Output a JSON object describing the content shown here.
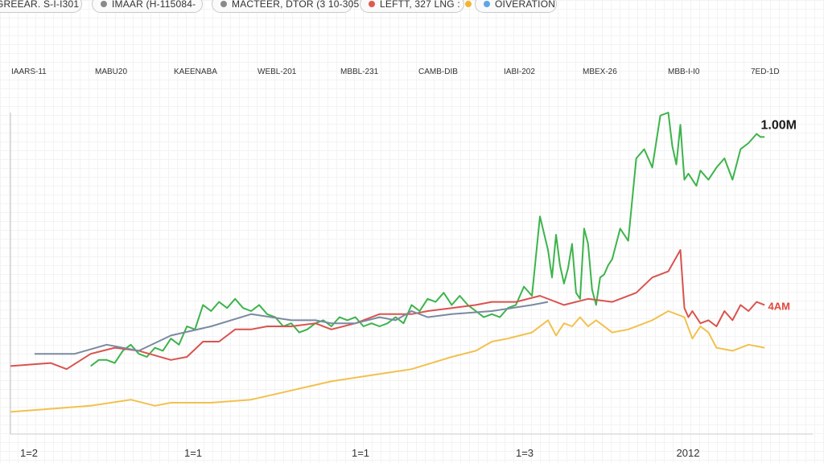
{
  "legend": [
    {
      "label": "GREEAR. S-I-I301",
      "color": "",
      "dot_position": "none"
    },
    {
      "label": "IMAAR (H-115084-",
      "color": "#8a8a8a",
      "dot_position": "before"
    },
    {
      "label": "MACTEER, DTOR (3 10-305",
      "color": "#8a8a8a",
      "dot_position": "before"
    },
    {
      "label": "LEFTT, 327 LNG :",
      "color": "#e05a4f",
      "dot_position": "before",
      "after_color": "#f2b531"
    },
    {
      "label": "OIVERATION",
      "color": "#5aa6e8",
      "dot_position": "before"
    }
  ],
  "column_headers": [
    "IAARS-11",
    "MABU20",
    "KAEENABA",
    "WEBL-201",
    "MBBL-231",
    "CAMB-DIB",
    "IABI-202",
    "MBEX-26",
    "MBB-I-I0",
    "7ED-1D"
  ],
  "chart_data": {
    "type": "line",
    "x_tick_labels": [
      "1=2",
      "1=1",
      "1=1",
      "1=3",
      "2012"
    ],
    "ylim": [
      0,
      1
    ],
    "grid": true,
    "end_labels": [
      {
        "series": "green",
        "text": "1.00M",
        "color": "#1a1a1a"
      },
      {
        "series": "red",
        "text": "4AM",
        "color": "#e0483c"
      }
    ],
    "series": [
      {
        "color": "#3cb44b",
        "x": [
          0.1,
          0.11,
          0.12,
          0.13,
          0.14,
          0.15,
          0.16,
          0.17,
          0.18,
          0.19,
          0.2,
          0.21,
          0.22,
          0.23,
          0.24,
          0.25,
          0.26,
          0.27,
          0.28,
          0.29,
          0.3,
          0.31,
          0.32,
          0.33,
          0.34,
          0.35,
          0.36,
          0.37,
          0.38,
          0.39,
          0.4,
          0.41,
          0.42,
          0.43,
          0.44,
          0.45,
          0.46,
          0.47,
          0.48,
          0.49,
          0.5,
          0.51,
          0.52,
          0.53,
          0.54,
          0.55,
          0.56,
          0.57,
          0.58,
          0.59,
          0.6,
          0.61,
          0.62,
          0.63,
          0.64,
          0.65,
          0.66,
          0.67,
          0.675,
          0.68,
          0.685,
          0.69,
          0.695,
          0.7,
          0.705,
          0.71,
          0.715,
          0.72,
          0.725,
          0.73,
          0.735,
          0.74,
          0.745,
          0.75,
          0.76,
          0.77,
          0.78,
          0.79,
          0.8,
          0.81,
          0.82,
          0.825,
          0.83,
          0.835,
          0.84,
          0.845,
          0.85,
          0.855,
          0.86,
          0.87,
          0.88,
          0.89,
          0.9,
          0.91,
          0.92,
          0.93,
          0.935,
          0.94
        ],
        "y": [
          0.17,
          0.19,
          0.19,
          0.18,
          0.22,
          0.24,
          0.21,
          0.2,
          0.23,
          0.22,
          0.26,
          0.24,
          0.3,
          0.29,
          0.37,
          0.35,
          0.38,
          0.36,
          0.39,
          0.36,
          0.35,
          0.37,
          0.34,
          0.33,
          0.3,
          0.31,
          0.28,
          0.29,
          0.31,
          0.32,
          0.3,
          0.33,
          0.32,
          0.33,
          0.3,
          0.31,
          0.3,
          0.31,
          0.33,
          0.31,
          0.37,
          0.35,
          0.39,
          0.38,
          0.41,
          0.37,
          0.4,
          0.37,
          0.35,
          0.33,
          0.34,
          0.33,
          0.36,
          0.37,
          0.43,
          0.4,
          0.66,
          0.55,
          0.46,
          0.6,
          0.5,
          0.44,
          0.49,
          0.57,
          0.41,
          0.39,
          0.62,
          0.57,
          0.42,
          0.37,
          0.46,
          0.47,
          0.5,
          0.52,
          0.62,
          0.58,
          0.85,
          0.88,
          0.82,
          0.99,
          1.0,
          0.89,
          0.83,
          0.96,
          0.78,
          0.8,
          0.78,
          0.76,
          0.81,
          0.78,
          0.82,
          0.85,
          0.78,
          0.88,
          0.9,
          0.93,
          0.92,
          0.92
        ],
        "comment": ""
      },
      {
        "color": "#d9534f",
        "x": [
          0.0,
          0.05,
          0.07,
          0.1,
          0.13,
          0.16,
          0.2,
          0.22,
          0.24,
          0.26,
          0.28,
          0.3,
          0.32,
          0.35,
          0.38,
          0.4,
          0.43,
          0.46,
          0.5,
          0.52,
          0.55,
          0.58,
          0.6,
          0.63,
          0.66,
          0.69,
          0.72,
          0.75,
          0.78,
          0.8,
          0.82,
          0.835,
          0.84,
          0.845,
          0.85,
          0.86,
          0.87,
          0.88,
          0.89,
          0.9,
          0.91,
          0.92,
          0.93,
          0.94
        ],
        "y": [
          0.17,
          0.18,
          0.16,
          0.21,
          0.23,
          0.22,
          0.19,
          0.2,
          0.25,
          0.25,
          0.29,
          0.29,
          0.3,
          0.3,
          0.31,
          0.29,
          0.31,
          0.34,
          0.34,
          0.35,
          0.36,
          0.37,
          0.38,
          0.38,
          0.4,
          0.37,
          0.39,
          0.38,
          0.41,
          0.46,
          0.48,
          0.55,
          0.36,
          0.33,
          0.35,
          0.31,
          0.32,
          0.3,
          0.35,
          0.32,
          0.37,
          0.35,
          0.38,
          0.37
        ]
      },
      {
        "color": "#7a8aa0",
        "x": [
          0.03,
          0.08,
          0.12,
          0.16,
          0.2,
          0.25,
          0.3,
          0.35,
          0.38,
          0.4,
          0.43,
          0.46,
          0.48,
          0.5,
          0.52,
          0.55,
          0.6,
          0.65,
          0.67
        ],
        "y": [
          0.21,
          0.21,
          0.24,
          0.22,
          0.27,
          0.3,
          0.34,
          0.32,
          0.32,
          0.31,
          0.31,
          0.33,
          0.32,
          0.35,
          0.33,
          0.34,
          0.35,
          0.37,
          0.38
        ]
      },
      {
        "color": "#f2c14e",
        "x": [
          0.0,
          0.05,
          0.1,
          0.15,
          0.18,
          0.2,
          0.25,
          0.3,
          0.35,
          0.4,
          0.45,
          0.5,
          0.55,
          0.58,
          0.6,
          0.62,
          0.65,
          0.67,
          0.68,
          0.69,
          0.7,
          0.71,
          0.72,
          0.73,
          0.75,
          0.77,
          0.8,
          0.82,
          0.84,
          0.85,
          0.86,
          0.87,
          0.88,
          0.9,
          0.92,
          0.94
        ],
        "y": [
          0.02,
          0.03,
          0.04,
          0.06,
          0.04,
          0.05,
          0.05,
          0.06,
          0.09,
          0.12,
          0.14,
          0.16,
          0.2,
          0.22,
          0.25,
          0.26,
          0.28,
          0.32,
          0.27,
          0.31,
          0.3,
          0.33,
          0.3,
          0.32,
          0.28,
          0.29,
          0.32,
          0.35,
          0.33,
          0.26,
          0.3,
          0.28,
          0.23,
          0.22,
          0.24,
          0.23
        ]
      }
    ]
  }
}
